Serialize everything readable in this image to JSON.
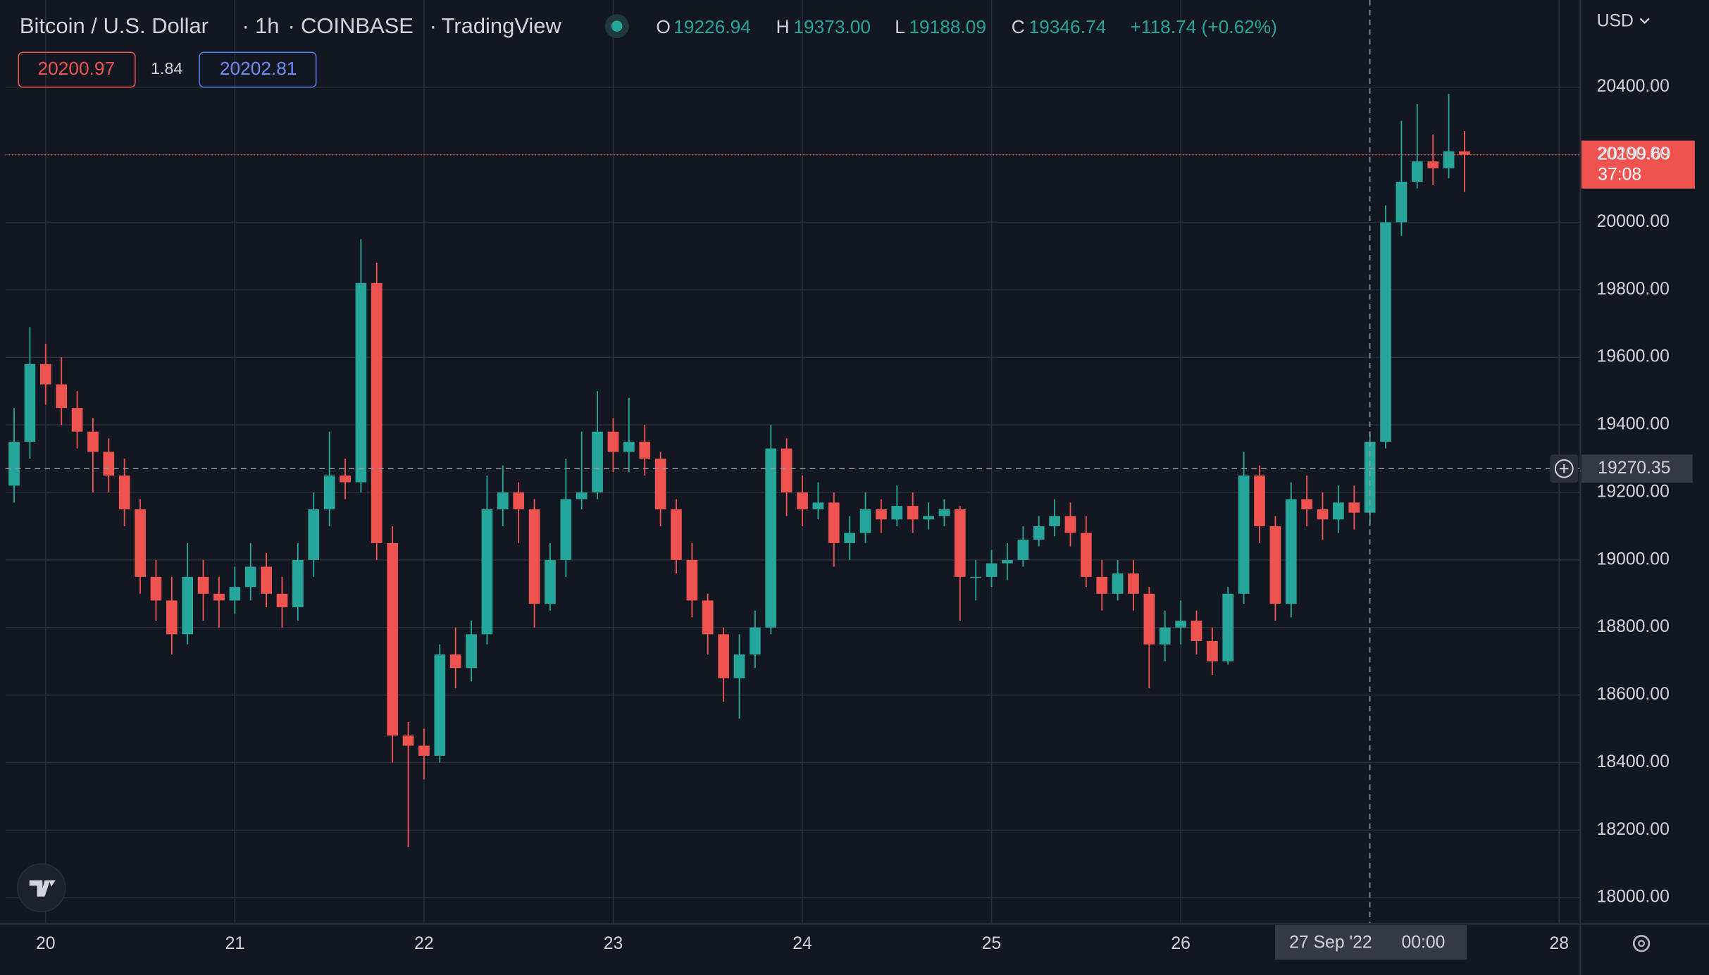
{
  "chart_data": {
    "type": "candlestick",
    "title": "Bitcoin / U.S. Dollar",
    "interval": "1h",
    "exchange": "COINBASE",
    "source": "TradingView",
    "ohlc_labels": [
      "O",
      "H",
      "L",
      "C"
    ],
    "ohlc_values": [
      "19226.94",
      "19373.00",
      "19188.09",
      "19346.74"
    ],
    "change": "+118.74 (+0.62%)",
    "bid": "20200.97",
    "spread": "1.84",
    "ask": "20202.81",
    "currency": "USD",
    "last_price": 20199.69,
    "countdown": "37:08",
    "crosshair_price": 19270.35,
    "crosshair_date": "27 Sep '22",
    "crosshair_time": "00:00",
    "crosshair_x": 168,
    "up_color": "#26a69a",
    "down_color": "#ef5350",
    "grid": true,
    "x": [
      -4,
      -2,
      0,
      2,
      4,
      6,
      8,
      10,
      12,
      14,
      16,
      18,
      20,
      22,
      24,
      26,
      28,
      30,
      32,
      34,
      36,
      38,
      40,
      42,
      44,
      46,
      48,
      50,
      52,
      54,
      56,
      58,
      60,
      62,
      64,
      66,
      68,
      70,
      72,
      74,
      76,
      78,
      80,
      82,
      84,
      86,
      88,
      90,
      92,
      94,
      96,
      98,
      100,
      102,
      104,
      106,
      108,
      110,
      112,
      114,
      116,
      118,
      120,
      122,
      124,
      126,
      128,
      130,
      132,
      134,
      136,
      138,
      140,
      142,
      144,
      146,
      148,
      150,
      152,
      154,
      156,
      158,
      160,
      162,
      164,
      166,
      168,
      170,
      172,
      174,
      176,
      178,
      180
    ],
    "open": [
      19220,
      19350,
      19580,
      19520,
      19450,
      19380,
      19320,
      19250,
      19150,
      18950,
      18880,
      18780,
      18950,
      18900,
      18880,
      18920,
      18980,
      18900,
      18860,
      19000,
      19150,
      19250,
      19230,
      19820,
      19050,
      18480,
      18450,
      18420,
      18720,
      18680,
      18780,
      19150,
      19200,
      19150,
      18870,
      19000,
      19180,
      19200,
      19380,
      19320,
      19350,
      19300,
      19150,
      19000,
      18880,
      18780,
      18650,
      18720,
      18800,
      19330,
      19200,
      19150,
      19170,
      19050,
      19080,
      19150,
      19120,
      19160,
      19120,
      19130,
      19150,
      18950,
      18950,
      18990,
      19000,
      19060,
      19100,
      19130,
      19080,
      18950,
      18900,
      18960,
      18900,
      18750,
      18800,
      18820,
      18760,
      18700,
      18900,
      19250,
      19100,
      18870,
      19180,
      19150,
      19120,
      19170,
      19140,
      19350,
      20000,
      20120,
      20180,
      20160,
      20210
    ],
    "high": [
      19450,
      19690,
      19640,
      19600,
      19500,
      19420,
      19360,
      19300,
      19180,
      19000,
      18950,
      19050,
      19000,
      18950,
      18980,
      19050,
      19020,
      18950,
      19050,
      19200,
      19380,
      19300,
      19950,
      19880,
      19100,
      18520,
      18500,
      18750,
      18800,
      18820,
      19250,
      19280,
      19230,
      19180,
      19050,
      19300,
      19380,
      19500,
      19420,
      19480,
      19400,
      19320,
      19180,
      19050,
      18900,
      18800,
      18780,
      18850,
      19400,
      19360,
      19250,
      19230,
      19200,
      19130,
      19200,
      19180,
      19220,
      19200,
      19170,
      19180,
      19160,
      19000,
      19030,
      19050,
      19100,
      19130,
      19180,
      19170,
      19130,
      19000,
      19000,
      19000,
      18920,
      18850,
      18880,
      18850,
      18800,
      18920,
      19320,
      19280,
      19130,
      19230,
      19250,
      19200,
      19220,
      19220,
      19380,
      20050,
      20300,
      20350,
      20260,
      20380,
      20270
    ],
    "low": [
      19170,
      19300,
      19460,
      19400,
      19330,
      19200,
      19200,
      19100,
      18900,
      18820,
      18720,
      18750,
      18820,
      18800,
      18840,
      18880,
      18860,
      18800,
      18820,
      18950,
      19100,
      19180,
      19200,
      19000,
      18400,
      18150,
      18350,
      18400,
      18620,
      18640,
      18750,
      19100,
      19050,
      18800,
      18850,
      18950,
      19150,
      19180,
      19260,
      19260,
      19250,
      19100,
      18960,
      18830,
      18720,
      18580,
      18530,
      18680,
      18780,
      19130,
      19100,
      19120,
      18980,
      19000,
      19050,
      19080,
      19100,
      19080,
      19090,
      19100,
      18820,
      18880,
      18920,
      18940,
      18980,
      19040,
      19070,
      19040,
      18920,
      18850,
      18880,
      18850,
      18620,
      18700,
      18750,
      18720,
      18660,
      18690,
      18870,
      19050,
      18820,
      18830,
      19100,
      19060,
      19080,
      19090,
      19100,
      19330,
      19960,
      20100,
      20110,
      20130,
      20090
    ],
    "close": [
      19350,
      19580,
      19520,
      19450,
      19380,
      19320,
      19250,
      19150,
      18950,
      18880,
      18780,
      18950,
      18900,
      18880,
      18920,
      18980,
      18900,
      18860,
      19000,
      19150,
      19250,
      19230,
      19820,
      19050,
      18480,
      18450,
      18420,
      18720,
      18680,
      18780,
      19150,
      19200,
      19150,
      18870,
      19000,
      19180,
      19200,
      19380,
      19320,
      19350,
      19300,
      19150,
      19000,
      18880,
      18780,
      18650,
      18720,
      18800,
      19330,
      19200,
      19150,
      19170,
      19050,
      19080,
      19150,
      19120,
      19160,
      19120,
      19130,
      19150,
      18950,
      18950,
      18990,
      19000,
      19060,
      19100,
      19130,
      19080,
      18950,
      18900,
      18960,
      18900,
      18750,
      18800,
      18820,
      18760,
      18700,
      18900,
      19250,
      19100,
      18870,
      19180,
      19150,
      19120,
      19170,
      19140,
      19350,
      20000,
      20120,
      20180,
      20160,
      20210,
      20200
    ],
    "xlim": [
      -5.1,
      194.7
    ],
    "xticks": [
      {
        "value": 0,
        "label": "20"
      },
      {
        "value": 24,
        "label": "21"
      },
      {
        "value": 48,
        "label": "22"
      },
      {
        "value": 72,
        "label": "23"
      },
      {
        "value": 96,
        "label": "24"
      },
      {
        "value": 120,
        "label": "25"
      },
      {
        "value": 144,
        "label": "26"
      },
      {
        "value": 192,
        "label": "28"
      }
    ],
    "ylim": [
      17922.6,
      20658.1
    ],
    "yticks": [
      {
        "value": 18000,
        "label": "18000.00"
      },
      {
        "value": 18200,
        "label": "18200.00"
      },
      {
        "value": 18400,
        "label": "18400.00"
      },
      {
        "value": 18600,
        "label": "18600.00"
      },
      {
        "value": 18800,
        "label": "18800.00"
      },
      {
        "value": 19000,
        "label": "19000.00"
      },
      {
        "value": 19200,
        "label": "19200.00"
      },
      {
        "value": 19400,
        "label": "19400.00"
      },
      {
        "value": 19600,
        "label": "19600.00"
      },
      {
        "value": 19800,
        "label": "19800.00"
      },
      {
        "value": 20000,
        "label": "20000.00"
      },
      {
        "value": 20200,
        "label": "20200.00"
      },
      {
        "value": 20400,
        "label": "20400.00"
      }
    ]
  }
}
